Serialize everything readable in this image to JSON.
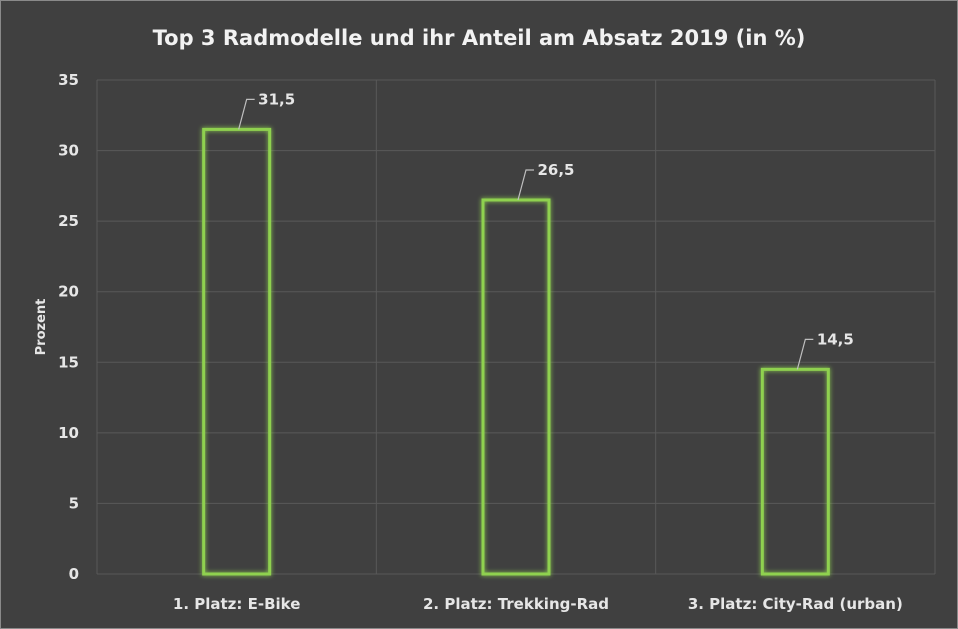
{
  "chart_data": {
    "type": "bar",
    "title": "Top 3 Radmodelle und ihr Anteil am Absatz 2019 (in %)",
    "xlabel": "",
    "ylabel": "Prozent",
    "categories": [
      "1. Platz: E-Bike",
      "2. Platz: Trekking-Rad",
      "3. Platz: City-Rad (urban)"
    ],
    "values": [
      31.5,
      26.5,
      14.5
    ],
    "data_labels": [
      "31,5",
      "26,5",
      "14,5"
    ],
    "ylim": [
      0,
      35
    ],
    "yticks": [
      0,
      5,
      10,
      15,
      20,
      25,
      30,
      35
    ],
    "ytick_labels": [
      "0",
      "5",
      "10",
      "15",
      "20",
      "25",
      "30",
      "35"
    ],
    "grid": true,
    "legend": "none",
    "colors": {
      "background": "#404040",
      "bar_outline": "#8fd14f",
      "gridline": "#595959",
      "text": "#e6e6e6"
    }
  }
}
